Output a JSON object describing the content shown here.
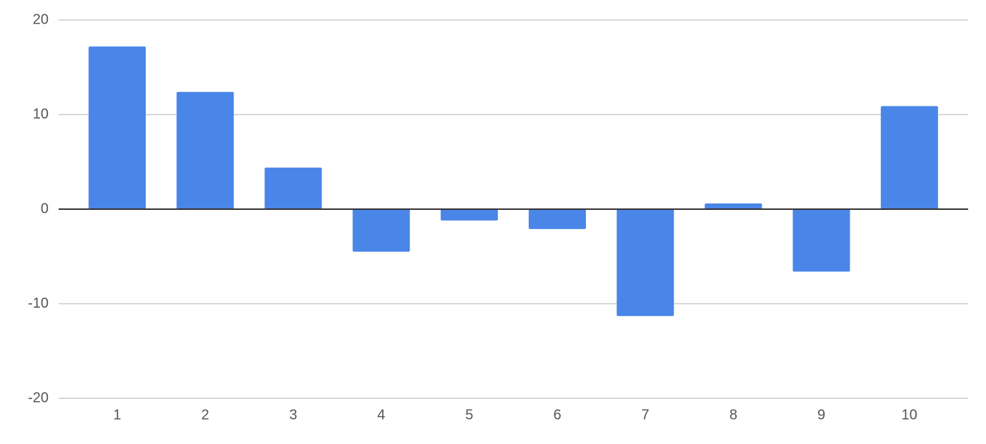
{
  "chart_data": {
    "type": "bar",
    "categories": [
      "1",
      "2",
      "3",
      "4",
      "5",
      "6",
      "7",
      "8",
      "9",
      "10"
    ],
    "values": [
      17.2,
      12.4,
      4.4,
      -4.5,
      -1.2,
      -2.1,
      -11.3,
      0.6,
      -6.6,
      10.9
    ],
    "color": "#4a86e8",
    "ylim": [
      -20,
      20
    ],
    "yticks": [
      -20,
      -10,
      0,
      10,
      20
    ],
    "grid": true
  }
}
